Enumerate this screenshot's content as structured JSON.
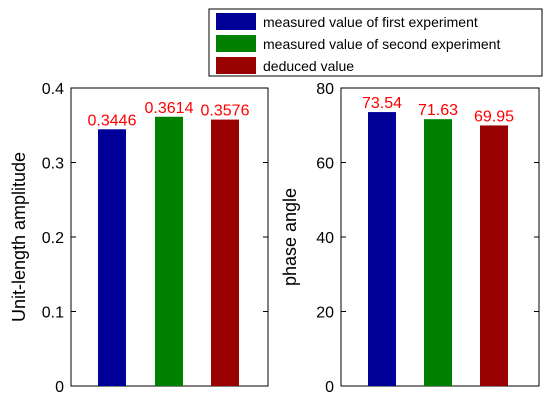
{
  "legend": {
    "entries": [
      {
        "label": "measured value of first experiment",
        "color": "#000099"
      },
      {
        "label": "measured value of second experiment",
        "color": "#008000"
      },
      {
        "label": "deduced value",
        "color": "#990000"
      }
    ]
  },
  "chart_data": [
    {
      "type": "bar",
      "title": "",
      "xlabel": "",
      "ylabel": "Unit-length amplitude",
      "ylim": [
        0,
        0.4
      ],
      "yticks": [
        "0",
        "0.1",
        "0.2",
        "0.3",
        "0.4"
      ],
      "values": [
        0.3446,
        0.3614,
        0.3576
      ],
      "value_labels": [
        "0.3446",
        "0.3614",
        "0.3576"
      ],
      "colors": [
        "#000099",
        "#008000",
        "#990000"
      ],
      "grid": false
    },
    {
      "type": "bar",
      "title": "",
      "xlabel": "",
      "ylabel": "phase angle",
      "ylim": [
        0,
        80
      ],
      "yticks": [
        "0",
        "20",
        "40",
        "60",
        "80"
      ],
      "values": [
        73.54,
        71.63,
        69.95
      ],
      "value_labels": [
        "73.54",
        "71.63",
        "69.95"
      ],
      "colors": [
        "#000099",
        "#008000",
        "#990000"
      ],
      "grid": false
    }
  ]
}
